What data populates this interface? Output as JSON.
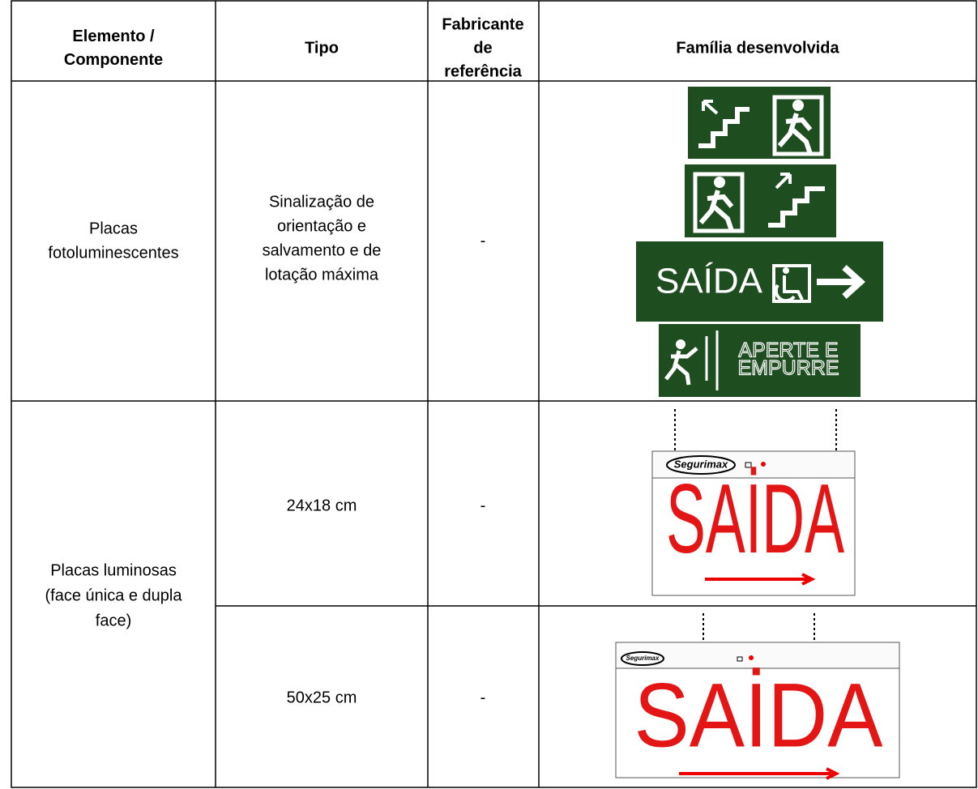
{
  "table": {
    "header": [
      [
        "Elemento /",
        "Componente"
      ],
      [
        "Tipo"
      ],
      [
        "Fabricante",
        "de",
        "referência"
      ],
      [
        "Família desenvolvida"
      ]
    ],
    "groups": [
      {
        "element": [
          "Placas",
          "fotoluminescentes"
        ],
        "rows": [
          {
            "type": [
              "Sinalização de",
              "orientação e",
              "salvamento e de",
              "lotação máxima"
            ],
            "manufacturer": "-",
            "signs": [
              "SAÍDA",
              [
                "APERTE E",
                "EMPURRE"
              ]
            ]
          }
        ]
      },
      {
        "element": [
          "Placas luminosas",
          "(face única e dupla",
          "face)"
        ],
        "rows": [
          {
            "type": [
              "24x18 cm"
            ],
            "manufacturer": "-",
            "signs": [
              "Segurimax",
              "SAİDA"
            ]
          },
          {
            "type": [
              "50x25 cm"
            ],
            "manufacturer": "-",
            "signs": [
              "Segurimax",
              "SAİDA"
            ]
          }
        ]
      }
    ]
  }
}
